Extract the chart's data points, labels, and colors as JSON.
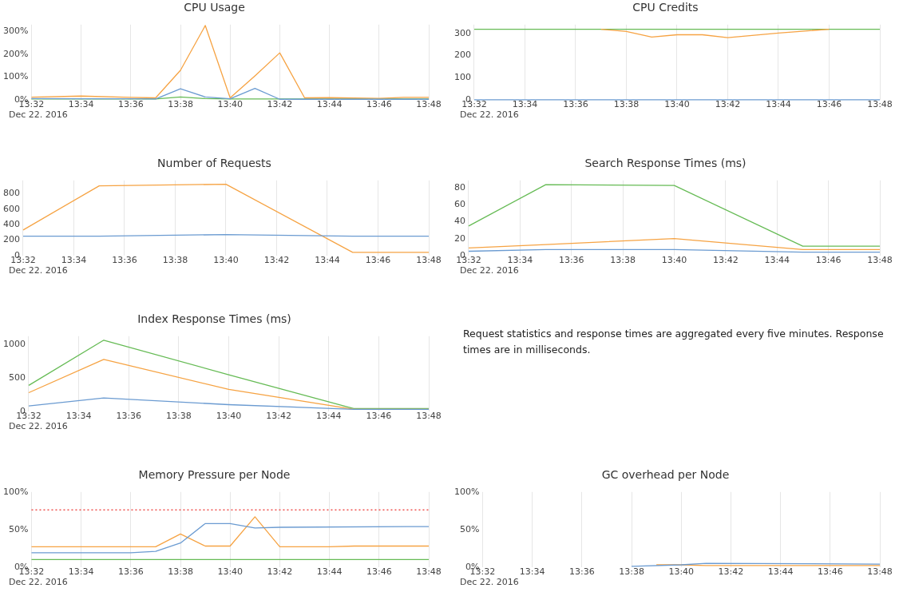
{
  "chart_data": [
    {
      "type": "line",
      "title": "CPU Usage",
      "grid": "x",
      "legend": false,
      "annotations": [
        "Dec 22. 2016"
      ],
      "xlim": [
        "2016-12-22T13:32",
        "2016-12-22T13:48"
      ],
      "xticks": [
        {
          "value": "2016-12-22T13:32",
          "label": "13:32"
        },
        {
          "value": "2016-12-22T13:34",
          "label": "13:34"
        },
        {
          "value": "2016-12-22T13:36",
          "label": "13:36"
        },
        {
          "value": "2016-12-22T13:38",
          "label": "13:38"
        },
        {
          "value": "2016-12-22T13:40",
          "label": "13:40"
        },
        {
          "value": "2016-12-22T13:42",
          "label": "13:42"
        },
        {
          "value": "2016-12-22T13:44",
          "label": "13:44"
        },
        {
          "value": "2016-12-22T13:46",
          "label": "13:46"
        },
        {
          "value": "2016-12-22T13:48",
          "label": "13:48"
        }
      ],
      "ylim": [
        0,
        330
      ],
      "yticks": [
        {
          "value": 0,
          "label": "0%"
        },
        {
          "value": 100,
          "label": "100%"
        },
        {
          "value": 200,
          "label": "200%"
        },
        {
          "value": 300,
          "label": "300%"
        }
      ],
      "series": [
        {
          "color": "#6b9bd1",
          "x": [
            "2016-12-22T13:32",
            "2016-12-22T13:34",
            "2016-12-22T13:36",
            "2016-12-22T13:37",
            "2016-12-22T13:38",
            "2016-12-22T13:39",
            "2016-12-22T13:40",
            "2016-12-22T13:41",
            "2016-12-22T13:42",
            "2016-12-22T13:44",
            "2016-12-22T13:46",
            "2016-12-22T13:48"
          ],
          "values": [
            5,
            4,
            4,
            3,
            48,
            12,
            4,
            50,
            2,
            2,
            2,
            2
          ]
        },
        {
          "color": "#f6a343",
          "x": [
            "2016-12-22T13:32",
            "2016-12-22T13:34",
            "2016-12-22T13:36",
            "2016-12-22T13:37",
            "2016-12-22T13:38",
            "2016-12-22T13:39",
            "2016-12-22T13:40",
            "2016-12-22T13:41",
            "2016-12-22T13:42",
            "2016-12-22T13:43",
            "2016-12-22T13:44",
            "2016-12-22T13:46",
            "2016-12-22T13:47",
            "2016-12-22T13:48"
          ],
          "values": [
            11,
            16,
            10,
            8,
            129,
            326,
            8,
            105,
            206,
            8,
            9,
            6,
            10,
            10
          ]
        },
        {
          "color": "#66bb55",
          "x": [
            "2016-12-22T13:32",
            "2016-12-22T13:37",
            "2016-12-22T13:38",
            "2016-12-22T13:39",
            "2016-12-22T13:40",
            "2016-12-22T13:48"
          ],
          "values": [
            3,
            3,
            12,
            5,
            3,
            3
          ]
        }
      ]
    },
    {
      "type": "line",
      "title": "CPU Credits",
      "grid": "x",
      "legend": false,
      "annotations": [
        "Dec 22. 2016"
      ],
      "xlim": [
        "2016-12-22T13:32",
        "2016-12-22T13:48"
      ],
      "xticks": [
        {
          "value": "2016-12-22T13:32",
          "label": "13:32"
        },
        {
          "value": "2016-12-22T13:34",
          "label": "13:34"
        },
        {
          "value": "2016-12-22T13:36",
          "label": "13:36"
        },
        {
          "value": "2016-12-22T13:38",
          "label": "13:38"
        },
        {
          "value": "2016-12-22T13:40",
          "label": "13:40"
        },
        {
          "value": "2016-12-22T13:42",
          "label": "13:42"
        },
        {
          "value": "2016-12-22T13:44",
          "label": "13:44"
        },
        {
          "value": "2016-12-22T13:46",
          "label": "13:46"
        },
        {
          "value": "2016-12-22T13:48",
          "label": "13:48"
        }
      ],
      "ylim": [
        0,
        340
      ],
      "yticks": [
        0,
        100,
        200,
        300
      ],
      "series": [
        {
          "color": "#6b9bd1",
          "x": [
            "2016-12-22T13:32",
            "2016-12-22T13:48"
          ],
          "values": [
            0,
            0
          ]
        },
        {
          "color": "#f6a343",
          "x": [
            "2016-12-22T13:37",
            "2016-12-22T13:38",
            "2016-12-22T13:39",
            "2016-12-22T13:40",
            "2016-12-22T13:41",
            "2016-12-22T13:42",
            "2016-12-22T13:44",
            "2016-12-22T13:46"
          ],
          "values": [
            319,
            309,
            284,
            294,
            294,
            281,
            302,
            319
          ]
        },
        {
          "color": "#66bb55",
          "x": [
            "2016-12-22T13:32",
            "2016-12-22T13:48"
          ],
          "values": [
            319,
            319
          ]
        }
      ]
    },
    {
      "type": "line",
      "title": "Number of Requests",
      "grid": "x",
      "legend": false,
      "annotations": [
        "Dec 22. 2016"
      ],
      "xlim": [
        "2016-12-22T13:32",
        "2016-12-22T13:48"
      ],
      "xticks": [
        {
          "value": "2016-12-22T13:32",
          "label": "13:32"
        },
        {
          "value": "2016-12-22T13:34",
          "label": "13:34"
        },
        {
          "value": "2016-12-22T13:36",
          "label": "13:36"
        },
        {
          "value": "2016-12-22T13:38",
          "label": "13:38"
        },
        {
          "value": "2016-12-22T13:40",
          "label": "13:40"
        },
        {
          "value": "2016-12-22T13:42",
          "label": "13:42"
        },
        {
          "value": "2016-12-22T13:44",
          "label": "13:44"
        },
        {
          "value": "2016-12-22T13:46",
          "label": "13:46"
        },
        {
          "value": "2016-12-22T13:48",
          "label": "13:48"
        }
      ],
      "ylim": [
        0,
        970
      ],
      "yticks": [
        0,
        200,
        400,
        600,
        800
      ],
      "series": [
        {
          "color": "#6b9bd1",
          "x": [
            "2016-12-22T13:32",
            "2016-12-22T13:35",
            "2016-12-22T13:40",
            "2016-12-22T13:45",
            "2016-12-22T13:48"
          ],
          "values": [
            250,
            250,
            270,
            250,
            250
          ]
        },
        {
          "color": "#f6a343",
          "x": [
            "2016-12-22T13:32",
            "2016-12-22T13:35",
            "2016-12-22T13:40",
            "2016-12-22T13:45",
            "2016-12-22T13:48"
          ],
          "values": [
            330,
            900,
            920,
            40,
            40
          ]
        }
      ]
    },
    {
      "type": "line",
      "title": "Search Response Times (ms)",
      "grid": "x",
      "legend": false,
      "annotations": [
        "Dec 22. 2016"
      ],
      "xlim": [
        "2016-12-22T13:32",
        "2016-12-22T13:48"
      ],
      "xticks": [
        {
          "value": "2016-12-22T13:32",
          "label": "13:32"
        },
        {
          "value": "2016-12-22T13:34",
          "label": "13:34"
        },
        {
          "value": "2016-12-22T13:36",
          "label": "13:36"
        },
        {
          "value": "2016-12-22T13:38",
          "label": "13:38"
        },
        {
          "value": "2016-12-22T13:40",
          "label": "13:40"
        },
        {
          "value": "2016-12-22T13:42",
          "label": "13:42"
        },
        {
          "value": "2016-12-22T13:44",
          "label": "13:44"
        },
        {
          "value": "2016-12-22T13:46",
          "label": "13:46"
        },
        {
          "value": "2016-12-22T13:48",
          "label": "13:48"
        }
      ],
      "ylim": [
        0,
        89
      ],
      "yticks": [
        0,
        20,
        40,
        60,
        80
      ],
      "series": [
        {
          "color": "#6b9bd1",
          "x": [
            "2016-12-22T13:32",
            "2016-12-22T13:35",
            "2016-12-22T13:40",
            "2016-12-22T13:45",
            "2016-12-22T13:48"
          ],
          "values": [
            5,
            7,
            7,
            4,
            4
          ]
        },
        {
          "color": "#f6a343",
          "x": [
            "2016-12-22T13:32",
            "2016-12-22T13:35",
            "2016-12-22T13:40",
            "2016-12-22T13:45",
            "2016-12-22T13:48"
          ],
          "values": [
            9,
            13,
            20,
            7,
            7
          ]
        },
        {
          "color": "#66bb55",
          "x": [
            "2016-12-22T13:32",
            "2016-12-22T13:35",
            "2016-12-22T13:40",
            "2016-12-22T13:45",
            "2016-12-22T13:48"
          ],
          "values": [
            35,
            84,
            83,
            11,
            11
          ]
        }
      ]
    },
    {
      "type": "line",
      "title": "Index Response Times (ms)",
      "grid": "x",
      "legend": false,
      "annotations": [
        "Dec 22. 2016"
      ],
      "xlim": [
        "2016-12-22T13:32",
        "2016-12-22T13:48"
      ],
      "xticks": [
        {
          "value": "2016-12-22T13:32",
          "label": "13:32"
        },
        {
          "value": "2016-12-22T13:34",
          "label": "13:34"
        },
        {
          "value": "2016-12-22T13:36",
          "label": "13:36"
        },
        {
          "value": "2016-12-22T13:38",
          "label": "13:38"
        },
        {
          "value": "2016-12-22T13:40",
          "label": "13:40"
        },
        {
          "value": "2016-12-22T13:42",
          "label": "13:42"
        },
        {
          "value": "2016-12-22T13:44",
          "label": "13:44"
        },
        {
          "value": "2016-12-22T13:46",
          "label": "13:46"
        },
        {
          "value": "2016-12-22T13:48",
          "label": "13:48"
        }
      ],
      "ylim": [
        0,
        1130
      ],
      "yticks": [
        0,
        500,
        1000
      ],
      "series": [
        {
          "color": "#6b9bd1",
          "x": [
            "2016-12-22T13:32",
            "2016-12-22T13:35",
            "2016-12-22T13:40",
            "2016-12-22T13:45",
            "2016-12-22T13:48"
          ],
          "values": [
            80,
            200,
            100,
            30,
            30
          ]
        },
        {
          "color": "#f6a343",
          "x": [
            "2016-12-22T13:32",
            "2016-12-22T13:35",
            "2016-12-22T13:40",
            "2016-12-22T13:45",
            "2016-12-22T13:48"
          ],
          "values": [
            280,
            780,
            330,
            30,
            30
          ]
        },
        {
          "color": "#66bb55",
          "x": [
            "2016-12-22T13:32",
            "2016-12-22T13:35",
            "2016-12-22T13:40",
            "2016-12-22T13:45",
            "2016-12-22T13:48"
          ],
          "values": [
            390,
            1070,
            550,
            40,
            40
          ]
        }
      ]
    },
    {
      "type": "other",
      "annotations": [
        "Request statistics and response times are aggregated every five minutes. Response times are in milliseconds."
      ]
    },
    {
      "type": "line",
      "title": "Memory Pressure per Node",
      "grid": "x",
      "legend": false,
      "annotations": [
        "Dec 22. 2016"
      ],
      "xlim": [
        "2016-12-22T13:32",
        "2016-12-22T13:48"
      ],
      "xticks": [
        {
          "value": "2016-12-22T13:32",
          "label": "13:32"
        },
        {
          "value": "2016-12-22T13:34",
          "label": "13:34"
        },
        {
          "value": "2016-12-22T13:36",
          "label": "13:36"
        },
        {
          "value": "2016-12-22T13:38",
          "label": "13:38"
        },
        {
          "value": "2016-12-22T13:40",
          "label": "13:40"
        },
        {
          "value": "2016-12-22T13:42",
          "label": "13:42"
        },
        {
          "value": "2016-12-22T13:44",
          "label": "13:44"
        },
        {
          "value": "2016-12-22T13:46",
          "label": "13:46"
        },
        {
          "value": "2016-12-22T13:48",
          "label": "13:48"
        }
      ],
      "ylim": [
        0,
        100
      ],
      "yticks": [
        {
          "value": 0,
          "label": "0%"
        },
        {
          "value": 50,
          "label": "50%"
        },
        {
          "value": 100,
          "label": "100%"
        }
      ],
      "ref_lines": [
        {
          "axis": "y",
          "value": 76,
          "color": "#ef5350",
          "line_style": "dotted"
        }
      ],
      "series": [
        {
          "color": "#6b9bd1",
          "x": [
            "2016-12-22T13:32",
            "2016-12-22T13:36",
            "2016-12-22T13:37",
            "2016-12-22T13:38",
            "2016-12-22T13:39",
            "2016-12-22T13:40",
            "2016-12-22T13:41",
            "2016-12-22T13:42",
            "2016-12-22T13:48"
          ],
          "values": [
            19,
            19,
            21,
            32,
            58,
            58,
            52,
            53,
            54
          ]
        },
        {
          "color": "#f6a343",
          "x": [
            "2016-12-22T13:32",
            "2016-12-22T13:37",
            "2016-12-22T13:38",
            "2016-12-22T13:39",
            "2016-12-22T13:40",
            "2016-12-22T13:41",
            "2016-12-22T13:42",
            "2016-12-22T13:44",
            "2016-12-22T13:45",
            "2016-12-22T13:48"
          ],
          "values": [
            27,
            27,
            44,
            28,
            28,
            67,
            27,
            27,
            28,
            28
          ]
        },
        {
          "color": "#66bb55",
          "x": [
            "2016-12-22T13:32",
            "2016-12-22T13:48"
          ],
          "values": [
            10,
            10
          ]
        }
      ]
    },
    {
      "type": "line",
      "title": "GC overhead per Node",
      "grid": "x",
      "legend": false,
      "annotations": [
        "Dec 22. 2016"
      ],
      "xlim": [
        "2016-12-22T13:32",
        "2016-12-22T13:48"
      ],
      "xticks": [
        {
          "value": "2016-12-22T13:32",
          "label": "13:32"
        },
        {
          "value": "2016-12-22T13:34",
          "label": "13:34"
        },
        {
          "value": "2016-12-22T13:36",
          "label": "13:36"
        },
        {
          "value": "2016-12-22T13:38",
          "label": "13:38"
        },
        {
          "value": "2016-12-22T13:40",
          "label": "13:40"
        },
        {
          "value": "2016-12-22T13:42",
          "label": "13:42"
        },
        {
          "value": "2016-12-22T13:44",
          "label": "13:44"
        },
        {
          "value": "2016-12-22T13:46",
          "label": "13:46"
        },
        {
          "value": "2016-12-22T13:48",
          "label": "13:48"
        }
      ],
      "ylim": [
        0,
        100
      ],
      "yticks": [
        {
          "value": 0,
          "label": "0%"
        },
        {
          "value": 50,
          "label": "50%"
        },
        {
          "value": 100,
          "label": "100%"
        }
      ],
      "series": [
        {
          "color": "#6b9bd1",
          "x": [
            "2016-12-22T13:38",
            "2016-12-22T13:40",
            "2016-12-22T13:41",
            "2016-12-22T13:48"
          ],
          "values": [
            1,
            3,
            5,
            4
          ]
        },
        {
          "color": "#f6a343",
          "x": [
            "2016-12-22T13:39",
            "2016-12-22T13:40",
            "2016-12-22T13:41",
            "2016-12-22T13:48"
          ],
          "values": [
            3,
            3,
            2,
            2
          ]
        }
      ]
    }
  ]
}
